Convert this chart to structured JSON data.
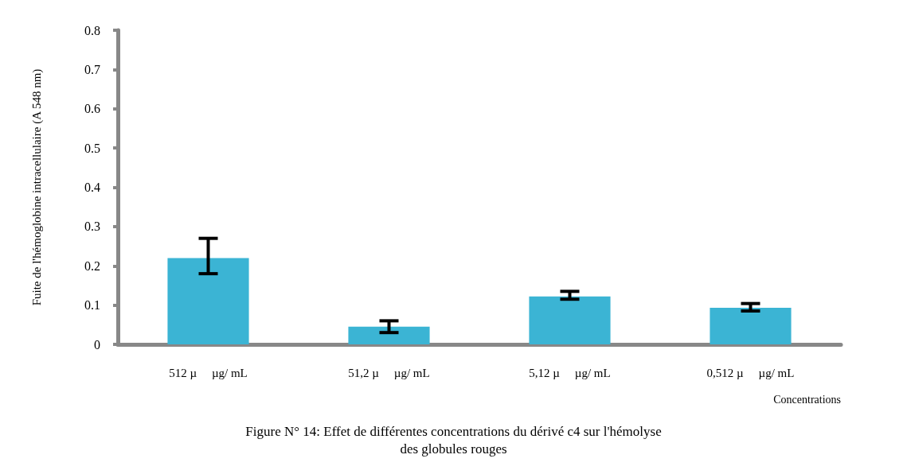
{
  "chart_data": {
    "type": "bar",
    "title": "Figure N° 14: Effet de différentes concentrations du dérivé c4 sur l'hémolyse\ndes globules rouges",
    "xlabel": "Concentrations",
    "ylabel": "Fuite de l'hémoglobine intracellulaire (A 548 nm)",
    "categories": [
      "512 µ     µg/ mL",
      "51,2 µ     µg/ mL",
      "5,12 µ     µg/ mL",
      "0,512 µ     µg/ mL"
    ],
    "values": [
      0.22,
      0.045,
      0.122,
      0.093
    ],
    "errors": [
      [
        0.18,
        0.27
      ],
      [
        0.03,
        0.06
      ],
      [
        0.115,
        0.135
      ],
      [
        0.085,
        0.104
      ]
    ],
    "color": "#3bb4d4",
    "ylim": [
      0,
      0.8
    ],
    "yticks": [
      0,
      0.1,
      0.2,
      0.3,
      0.4,
      0.5,
      0.6,
      0.7,
      0.8
    ],
    "grid": false
  }
}
